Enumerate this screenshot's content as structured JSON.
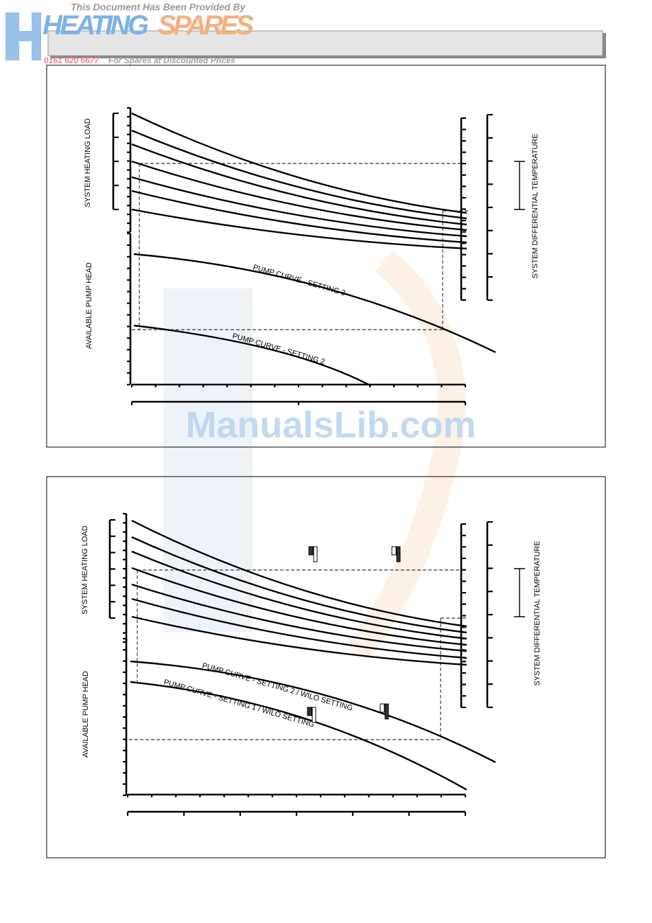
{
  "header": {
    "provided_by": "This Document Has Been Provided By",
    "brand_heating": "HEATING",
    "brand_spares": "SPARES",
    "phone": "0161 620 6677",
    "tagline": "For Spares at Discounted Prices"
  },
  "diagrams": [
    {
      "left_top": "SYSTEM HEATING LOAD",
      "left_bottom": "AVAILABLE PUMP HEAD",
      "right": "SYSTEM DIFFERENTIAL TEMPERATURE",
      "curves": [
        "PUMP CURVE - SETTING 3",
        "PUMP CURVE - SETTING 2"
      ]
    },
    {
      "left_top": "SYSTEM HEATING LOAD",
      "left_bottom": "AVAILABLE PUMP HEAD",
      "right": "SYSTEM DIFFERENTIAL  TEMPERATURE",
      "curves": [
        "PUMP CURVE - SETTING 2 / WILO SETTING",
        "PUMP CURVE - SETTING 1 / WILO SETTING"
      ]
    }
  ],
  "watermark": "ManualsLib.com"
}
